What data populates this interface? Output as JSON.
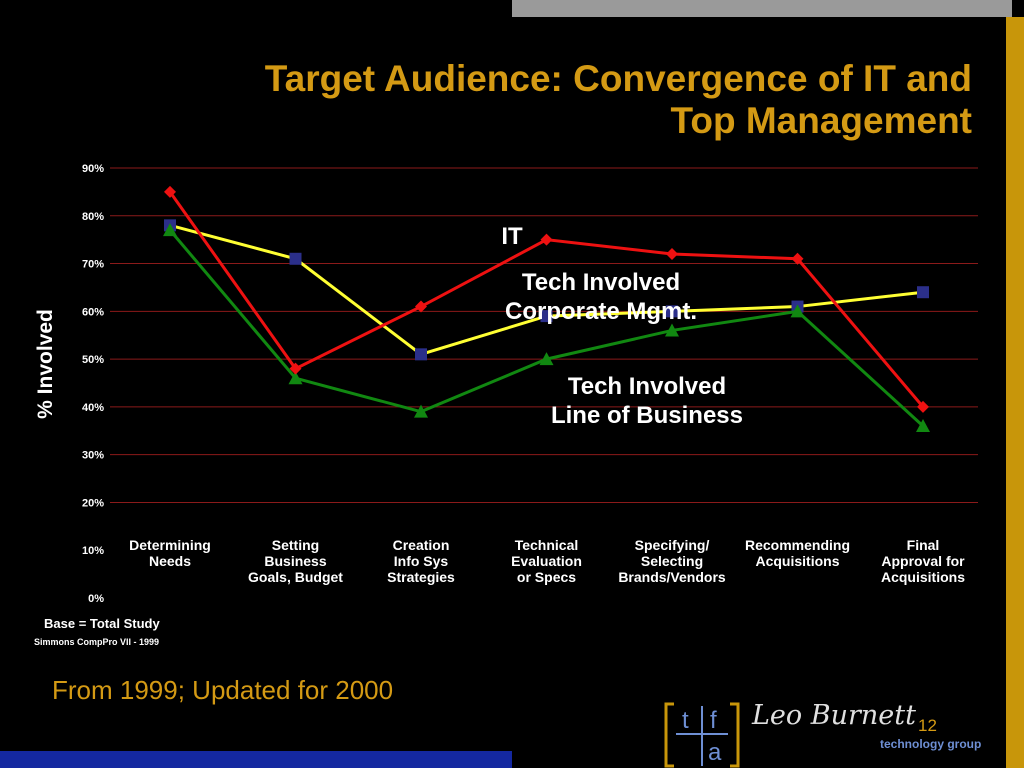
{
  "slide": {
    "title_lines": [
      "Target Audience: Convergence of IT and",
      "Top Management"
    ],
    "footer_note": "From 1999; Updated for 2000",
    "base_note": "Base = Total Study",
    "source_note": "Simmons CompPro VII - 1999",
    "page_number": "12",
    "logo": {
      "script_text": "Leo Burnett",
      "tagline": "technology group",
      "letters": [
        "t",
        "f",
        "a"
      ]
    },
    "colors": {
      "title": "#d49a14",
      "grid": "#8b1a1a",
      "top_bar": "#9a9a9a",
      "right_bar": "#c8960a",
      "bottom_bar": "#1428a0"
    }
  },
  "chart_data": {
    "type": "line",
    "ylabel": "% Involved",
    "ylim": [
      0,
      90
    ],
    "yticks": [
      "0%",
      "10%",
      "20%",
      "30%",
      "40%",
      "50%",
      "60%",
      "70%",
      "80%",
      "90%"
    ],
    "grid": true,
    "categories": [
      [
        "Determining",
        "Needs"
      ],
      [
        "Setting",
        "Business",
        "Goals, Budget"
      ],
      [
        "Creation",
        "Info Sys",
        "Strategies"
      ],
      [
        "Technical",
        "Evaluation",
        "or Specs"
      ],
      [
        "Specifying/",
        "Selecting",
        "Brands/Vendors"
      ],
      [
        "Recommending",
        "Acquisitions"
      ],
      [
        "Final",
        "Approval for",
        "Acquisitions"
      ]
    ],
    "series": [
      {
        "name": "IT",
        "color": "#ee1111",
        "marker": "diamond",
        "values": [
          85,
          48,
          61,
          75,
          72,
          71,
          40
        ]
      },
      {
        "name": "Tech Involved Corporate Mgmt.",
        "color": "#ffff33",
        "marker": "square",
        "values": [
          78,
          71,
          51,
          59,
          60,
          61,
          64
        ]
      },
      {
        "name": "Tech Involved Line of Business",
        "color": "#118811",
        "marker": "triangle",
        "values": [
          77,
          46,
          39,
          50,
          56,
          60,
          36
        ]
      }
    ],
    "annotations": [
      {
        "lines": [
          "IT"
        ]
      },
      {
        "lines": [
          "Tech Involved",
          "Corporate Mgmt."
        ]
      },
      {
        "lines": [
          "Tech Involved",
          "Line of Business"
        ]
      }
    ]
  }
}
